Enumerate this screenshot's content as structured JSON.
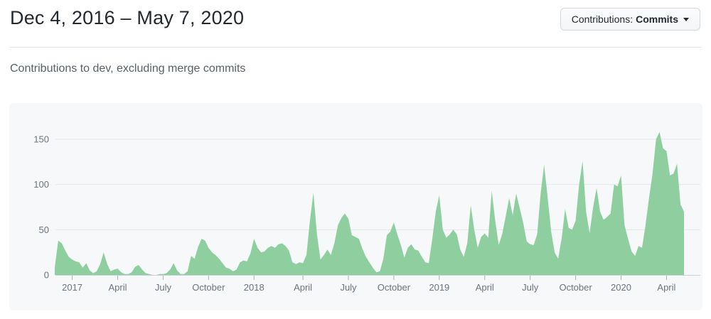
{
  "header": {
    "title": "Dec 4, 2016 – May 7, 2020",
    "contributions_button": {
      "prefix": "Contributions:",
      "value": "Commits",
      "caret_icon": "dropdown-caret-icon"
    }
  },
  "subtitle": "Contributions to dev, excluding merge commits",
  "chart_data": {
    "type": "area",
    "title": "Contributions to dev, excluding merge commits",
    "xlabel": "",
    "ylabel": "",
    "x_start_label": "Dec 4, 2016",
    "x_end_label": "May 7, 2020",
    "x_unit": "week",
    "grid": true,
    "legend_position": "none",
    "ylim": [
      0,
      170
    ],
    "y_ticks": [
      0,
      50,
      100,
      150
    ],
    "x_ticks": [
      {
        "label": "2017",
        "index": 5
      },
      {
        "label": "April",
        "index": 18
      },
      {
        "label": "July",
        "index": 31
      },
      {
        "label": "October",
        "index": 44
      },
      {
        "label": "2018",
        "index": 57
      },
      {
        "label": "April",
        "index": 71
      },
      {
        "label": "July",
        "index": 84
      },
      {
        "label": "October",
        "index": 97
      },
      {
        "label": "2019",
        "index": 110
      },
      {
        "label": "April",
        "index": 123
      },
      {
        "label": "July",
        "index": 136
      },
      {
        "label": "October",
        "index": 149
      },
      {
        "label": "2020",
        "index": 162
      },
      {
        "label": "April",
        "index": 175
      }
    ],
    "values": [
      8,
      38,
      35,
      27,
      20,
      17,
      15,
      14,
      8,
      13,
      5,
      2,
      4,
      12,
      25,
      12,
      4,
      6,
      7,
      3,
      1,
      1,
      3,
      9,
      11,
      6,
      2,
      1,
      0,
      0,
      1,
      1,
      2,
      6,
      13,
      5,
      1,
      1,
      4,
      21,
      18,
      31,
      40,
      38,
      30,
      25,
      22,
      18,
      13,
      8,
      7,
      4,
      6,
      14,
      16,
      15,
      24,
      40,
      30,
      25,
      26,
      30,
      32,
      30,
      34,
      35,
      32,
      27,
      14,
      12,
      14,
      13,
      22,
      60,
      91,
      45,
      17,
      22,
      28,
      22,
      35,
      55,
      63,
      68,
      62,
      44,
      42,
      40,
      29,
      20,
      14,
      8,
      3,
      4,
      18,
      44,
      48,
      58,
      45,
      33,
      19,
      30,
      34,
      28,
      27,
      20,
      14,
      13,
      40,
      70,
      88,
      50,
      41,
      45,
      50,
      45,
      28,
      20,
      35,
      77,
      50,
      30,
      42,
      46,
      41,
      93,
      60,
      33,
      45,
      65,
      85,
      66,
      90,
      74,
      58,
      37,
      34,
      33,
      45,
      90,
      122,
      85,
      48,
      25,
      18,
      40,
      73,
      52,
      50,
      60,
      100,
      126,
      70,
      46,
      75,
      96,
      70,
      61,
      64,
      68,
      100,
      98,
      110,
      55,
      40,
      26,
      21,
      32,
      30,
      55,
      85,
      112,
      150,
      158,
      140,
      137,
      110,
      112,
      123,
      78,
      70
    ],
    "colors": {
      "area_fill": "#8fcf9f",
      "grid_line": "#e4e7eb",
      "axis_line": "#ccd1d7",
      "tick_mark": "#a9b1b8",
      "axis_text": "#6a737d",
      "panel_bg": "#f6f8fa"
    }
  }
}
